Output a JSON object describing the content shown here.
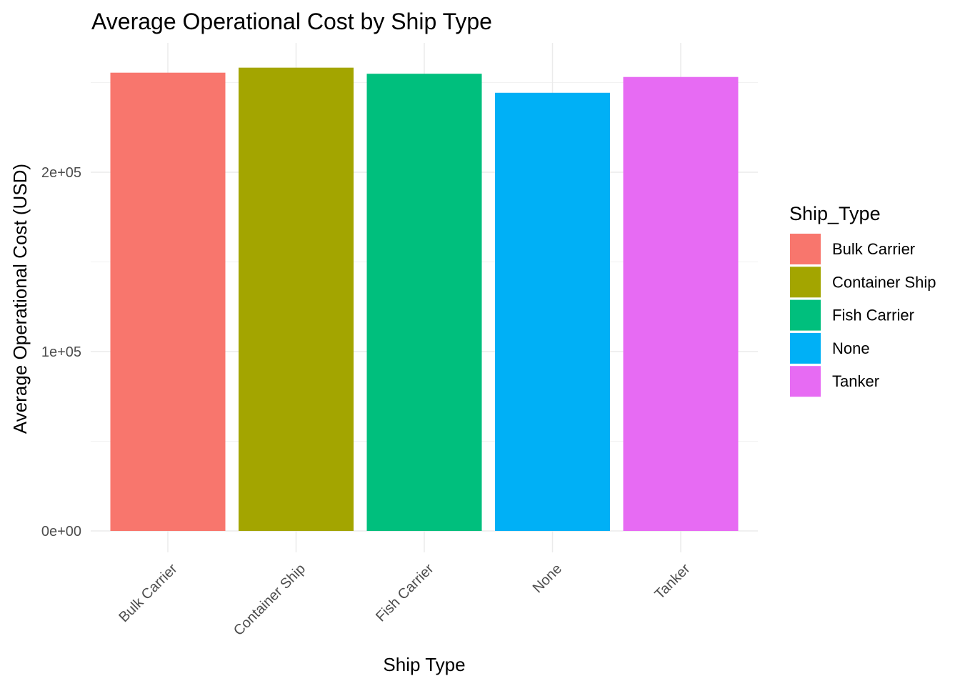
{
  "chart_data": {
    "type": "bar",
    "title": "Average Operational Cost by Ship Type",
    "xlabel": "Ship Type",
    "ylabel": "Average Operational Cost (USD)",
    "categories": [
      "Bulk Carrier",
      "Container Ship",
      "Fish Carrier",
      "None",
      "Tanker"
    ],
    "values": [
      255500,
      258300,
      254900,
      244300,
      253100
    ],
    "colors": [
      "#F8766D",
      "#A3A500",
      "#00BF7D",
      "#00B0F6",
      "#E76BF3"
    ],
    "ylim": [
      0,
      265000
    ],
    "y_ticks": [
      0,
      100000,
      200000
    ],
    "y_tick_labels": [
      "0e+00",
      "1e+05",
      "2e+05"
    ],
    "grid": true,
    "legend": {
      "title": "Ship_Type",
      "position": "right",
      "items": [
        "Bulk Carrier",
        "Container Ship",
        "Fish Carrier",
        "None",
        "Tanker"
      ]
    }
  }
}
